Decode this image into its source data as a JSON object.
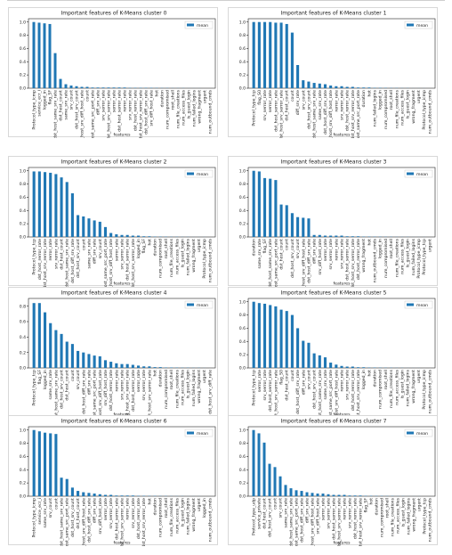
{
  "chart_data": [
    {
      "type": "bar",
      "title": "Important features of K-Means cluster 0",
      "xlabel": "features",
      "ylabel": "",
      "ylim": [
        0,
        1.05
      ],
      "yticks": [
        0.0,
        0.2,
        0.4,
        0.6,
        0.8,
        1.0
      ],
      "legend": "top-right",
      "series": [
        {
          "name": "mean"
        }
      ],
      "categories": [
        "Protocol_type_icmp",
        "service_ecr_i",
        "logged_in",
        "flag_SF",
        "dst_host_same_srv_rate",
        "dst_host_count",
        "same_srv_rate",
        "srv_count",
        "dst_host_srv_count",
        "dst_host_srv_diff_host_rate",
        "count",
        "dst_host_same_src_port_rate",
        "diff_srv_rate",
        "srv_serror_rate",
        "dst_host_srv_serror_rate",
        "serror_rate",
        "dst_host_serror_rate",
        "rerror_rate",
        "srv_rerror_rate",
        "dst_host_rerror_rate",
        "dst_host_srv_rerror_rate",
        "dst_host_diff_srv_rate",
        "srv_diff_host_rate",
        "hot",
        "duration",
        "num_compromised",
        "root_shell",
        "num_file_creations",
        "num_access_files",
        "is_guest_login",
        "num_failed_logins",
        "wrong_fragment",
        "urgent",
        "num_outbound_cmds"
      ],
      "values": [
        1.0,
        0.99,
        0.98,
        0.97,
        0.53,
        0.14,
        0.06,
        0.04,
        0.03,
        0.02,
        0.02,
        0.01,
        0.01,
        0.01,
        0.01,
        0.01,
        0.01,
        0.01,
        0.005,
        0.005,
        0.005,
        0.005,
        0.005,
        0.004,
        0.003,
        0.003,
        0.002,
        0.002,
        0.002,
        0.001,
        0.001,
        0.001,
        0.0,
        0.0
      ]
    },
    {
      "type": "bar",
      "title": "Important features of K-Means cluster 1",
      "xlabel": "features",
      "ylabel": "",
      "ylim": [
        0,
        1.05
      ],
      "yticks": [
        0.0,
        0.2,
        0.4,
        0.6,
        0.8,
        1.0
      ],
      "legend": "top-right",
      "series": [
        {
          "name": "mean"
        }
      ],
      "categories": [
        "Protocol_type_tcp",
        "flag_S0",
        "srv_serror_rate",
        "serror_rate",
        "dst_host_serror_rate",
        "dst_host_srv_serror_rate",
        "dst_host_count",
        "count",
        "diff_srv_rate",
        "srv_count",
        "dst_host_srv_count",
        "dst_host_same_srv_rate",
        "same_srv_rate",
        "dst_host_diff_srv_rate",
        "dst_host_srv_diff_host_rate",
        "rerror_rate",
        "srv_rerror_rate",
        "dst_host_rerror_rate",
        "dst_host_srv_rerror_rate",
        "dst_host_same_src_port_rate",
        "duration",
        "hot",
        "num_failed_logins",
        "logged_in",
        "num_compromised",
        "root_shell",
        "num_file_creations",
        "num_access_files",
        "is_guest_login",
        "wrong_fragment",
        "urgent",
        "Protocol_type_icmp",
        "num_outbound_cmds"
      ],
      "values": [
        1.0,
        1.0,
        1.0,
        1.0,
        0.99,
        0.99,
        0.97,
        0.84,
        0.35,
        0.12,
        0.1,
        0.08,
        0.07,
        0.06,
        0.04,
        0.03,
        0.03,
        0.02,
        0.02,
        0.01,
        0.01,
        0.01,
        0.005,
        0.005,
        0.004,
        0.003,
        0.003,
        0.002,
        0.002,
        0.001,
        0.001,
        0.001,
        0.0
      ]
    },
    {
      "type": "bar",
      "title": "Important features of K-Means cluster 2",
      "xlabel": "features",
      "ylabel": "",
      "ylim": [
        0,
        1.05
      ],
      "yticks": [
        0.0,
        0.2,
        0.4,
        0.6,
        0.8,
        1.0
      ],
      "legend": "top-right",
      "series": [
        {
          "name": "mean"
        }
      ],
      "categories": [
        "Protocol_type_tcp",
        "dst_host_rerror_rate",
        "dst_host_srv_rerror_rate",
        "rerror_rate",
        "srv_rerror_rate",
        "dst_host_count",
        "dst_host_same_srv_rate",
        "dst_host_diff_srv_rate",
        "dst_host_srv_count",
        "count",
        "same_srv_rate",
        "diff_srv_rate",
        "srv_count",
        "dst_host_same_src_port_rate",
        "dst_host_srv_diff_host_rate",
        "serror_rate",
        "srv_serror_rate",
        "dst_host_serror_rate",
        "dst_host_srv_serror_rate",
        "logged_in",
        "flag_SF",
        "hot",
        "duration",
        "num_compromised",
        "root_shell",
        "num_file_creations",
        "num_access_files",
        "is_guest_login",
        "num_failed_logins",
        "wrong_fragment",
        "urgent",
        "Protocol_type_icmp",
        "num_outbound_cmds"
      ],
      "values": [
        0.99,
        0.99,
        0.98,
        0.97,
        0.95,
        0.9,
        0.83,
        0.66,
        0.33,
        0.31,
        0.28,
        0.25,
        0.23,
        0.15,
        0.06,
        0.04,
        0.03,
        0.03,
        0.02,
        0.02,
        0.01,
        0.01,
        0.005,
        0.005,
        0.004,
        0.003,
        0.003,
        0.002,
        0.002,
        0.001,
        0.001,
        0.001,
        0.0
      ]
    },
    {
      "type": "bar",
      "title": "Important features of K-Means cluster 3",
      "xlabel": "features",
      "ylabel": "",
      "ylim": [
        0,
        1.05
      ],
      "yticks": [
        0.0,
        0.2,
        0.4,
        0.6,
        0.8,
        1.0
      ],
      "legend": "top-right",
      "series": [
        {
          "name": "mean"
        }
      ],
      "categories": [
        "duration",
        "same_srv_rate",
        "flag_SF",
        "dst_host_same_srv_rate",
        "dst_host_same_src_port_rate",
        "dst_host_count",
        "count",
        "dst_host_srv_count",
        "srv_count",
        "dst_host_srv_diff_host_rate",
        "dst_host_diff_srv_rate",
        "diff_srv_rate",
        "srv_diff_host_rate",
        "serror_rate",
        "srv_serror_rate",
        "rerror_rate",
        "srv_rerror_rate",
        "dst_host_serror_rate",
        "dst_host_srv_serror_rate",
        "dst_host_rerror_rate",
        "wrong_fragment",
        "hot",
        "num_outbound_cmds",
        "logged_in",
        "num_compromised",
        "root_shell",
        "num_file_creations",
        "num_access_files",
        "is_guest_login",
        "num_failed_logins",
        "Protocol_type_icmp",
        "Protocol_type_tcp",
        "urgent"
      ],
      "values": [
        1.0,
        0.99,
        0.89,
        0.88,
        0.86,
        0.49,
        0.48,
        0.36,
        0.3,
        0.29,
        0.28,
        0.03,
        0.03,
        0.02,
        0.02,
        0.02,
        0.02,
        0.01,
        0.01,
        0.01,
        0.005,
        0.005,
        0.004,
        0.004,
        0.003,
        0.003,
        0.002,
        0.002,
        0.002,
        0.001,
        0.001,
        0.001,
        0.0
      ]
    },
    {
      "type": "bar",
      "title": "Important features of K-Means cluster 4",
      "xlabel": "features",
      "ylabel": "",
      "ylim": [
        0,
        0.9
      ],
      "yticks": [
        0.0,
        0.2,
        0.4,
        0.6,
        0.8
      ],
      "legend": "top-right",
      "series": [
        {
          "name": "mean"
        }
      ],
      "categories": [
        "Protocol_type_tcp",
        "flag_SF",
        "logged_in",
        "same_srv_rate",
        "dst_host_same_srv_rate",
        "dst_host_srv_count",
        "dst_host_count",
        "count",
        "srv_count",
        "dst_host_diff_srv_rate",
        "diff_srv_rate",
        "dst_host_same_src_port_rate",
        "dst_host_srv_diff_host_rate",
        "srv_diff_host_rate",
        "dst_host_rerror_rate",
        "rerror_rate",
        "srv_rerror_rate",
        "dst_host_srv_rerror_rate",
        "dst_host_serror_rate",
        "serror_rate",
        "srv_serror_rate",
        "dst_host_srv_serror_rate",
        "hot",
        "duration",
        "num_compromised",
        "root_shell",
        "num_file_creations",
        "num_access_files",
        "is_guest_login",
        "num_failed_logins",
        "wrong_fragment",
        "urgent",
        "dst_host_srv_diff_rate"
      ],
      "values": [
        0.84,
        0.84,
        0.72,
        0.58,
        0.49,
        0.44,
        0.34,
        0.31,
        0.22,
        0.2,
        0.18,
        0.16,
        0.15,
        0.1,
        0.08,
        0.06,
        0.05,
        0.05,
        0.04,
        0.03,
        0.02,
        0.02,
        0.01,
        0.01,
        0.005,
        0.005,
        0.004,
        0.003,
        0.003,
        0.002,
        0.002,
        0.001,
        0.0
      ]
    },
    {
      "type": "bar",
      "title": "Important features of K-Means cluster 5",
      "xlabel": "features",
      "ylabel": "",
      "ylim": [
        0,
        1.05
      ],
      "yticks": [
        0.0,
        0.2,
        0.4,
        0.6,
        0.8,
        1.0
      ],
      "legend": "top-right",
      "series": [
        {
          "name": "mean"
        }
      ],
      "categories": [
        "Protocol_type_tcp",
        "serror_rate",
        "srv_serror_rate",
        "dst_host_serror_rate",
        "dst_host_srv_serror_rate",
        "flag_S0",
        "dst_host_count",
        "count",
        "dst_host_diff_srv_rate",
        "diff_srv_rate",
        "srv_count",
        "dst_host_srv_count",
        "dst_host_same_srv_rate",
        "same_srv_rate",
        "dst_host_same_src_port_rate",
        "dst_host_srv_diff_host_rate",
        "rerror_rate",
        "srv_rerror_rate",
        "dst_host_rerror_rate",
        "dst_host_srv_rerror_rate",
        "logged_in",
        "hot",
        "duration",
        "num_compromised",
        "root_shell",
        "num_file_creations",
        "num_access_files",
        "is_guest_login",
        "num_failed_logins",
        "wrong_fragment",
        "urgent",
        "Protocol_type_icmp",
        "num_outbound_cmds"
      ],
      "values": [
        1.0,
        0.98,
        0.97,
        0.95,
        0.93,
        0.88,
        0.86,
        0.8,
        0.6,
        0.41,
        0.38,
        0.22,
        0.19,
        0.16,
        0.08,
        0.05,
        0.03,
        0.02,
        0.02,
        0.01,
        0.01,
        0.005,
        0.005,
        0.004,
        0.003,
        0.003,
        0.002,
        0.002,
        0.001,
        0.001,
        0.001,
        0.0,
        0.0
      ]
    },
    {
      "type": "bar",
      "title": "Important features of K-Means cluster 6",
      "xlabel": "features",
      "ylabel": "",
      "ylim": [
        0,
        1.05
      ],
      "yticks": [
        0.0,
        0.2,
        0.4,
        0.6,
        0.8,
        1.0
      ],
      "legend": "top-right",
      "series": [
        {
          "name": "mean"
        }
      ],
      "categories": [
        "Protocol_type_icmp",
        "service_ecr_i",
        "same_srv_rate",
        "srv_count",
        "count",
        "dst_host_same_srv_rate",
        "dst_host_same_src_port_rate",
        "dst_host_srv_count",
        "dst_host_count",
        "dst_host_srv_diff_host_rate",
        "dst_host_diff_srv_rate",
        "diff_srv_rate",
        "srv_diff_host_rate",
        "serror_rate",
        "srv_serror_rate",
        "dst_host_serror_rate",
        "dst_host_srv_serror_rate",
        "rerror_rate",
        "srv_rerror_rate",
        "dst_host_rerror_rate",
        "dst_host_srv_rerror_rate",
        "hot",
        "duration",
        "num_compromised",
        "root_shell",
        "num_file_creations",
        "num_access_files",
        "is_guest_login",
        "num_failed_logins",
        "wrong_fragment",
        "urgent",
        "logged_in",
        "num_outbound_cmds"
      ],
      "values": [
        1.0,
        0.98,
        0.96,
        0.95,
        0.94,
        0.28,
        0.26,
        0.13,
        0.08,
        0.06,
        0.05,
        0.04,
        0.03,
        0.02,
        0.02,
        0.01,
        0.01,
        0.01,
        0.01,
        0.005,
        0.005,
        0.004,
        0.004,
        0.003,
        0.003,
        0.002,
        0.002,
        0.002,
        0.001,
        0.001,
        0.001,
        0.0,
        0.0
      ]
    },
    {
      "type": "bar",
      "title": "Important features of K-Means cluster 7",
      "xlabel": "features",
      "ylabel": "",
      "ylim": [
        0,
        1.05
      ],
      "yticks": [
        0.0,
        0.2,
        0.4,
        0.6,
        0.8,
        1.0
      ],
      "legend": "top-right",
      "series": [
        {
          "name": "mean"
        }
      ],
      "categories": [
        "Protocol_type_udp",
        "service_private",
        "dst_host_count",
        "dst_host_srv_count",
        "count",
        "srv_count",
        "same_srv_rate",
        "dst_host_same_srv_rate",
        "dst_host_same_src_port_rate",
        "dst_host_diff_srv_rate",
        "diff_srv_rate",
        "dst_host_srv_diff_host_rate",
        "srv_diff_host_rate",
        "serror_rate",
        "srv_serror_rate",
        "dst_host_serror_rate",
        "dst_host_srv_serror_rate",
        "rerror_rate",
        "srv_rerror_rate",
        "dst_host_rerror_rate",
        "dst_host_srv_rerror_rate",
        "flag_SF",
        "hot",
        "duration",
        "num_compromised",
        "root_shell",
        "num_file_creations",
        "num_access_files",
        "is_guest_login",
        "num_failed_logins",
        "wrong_fragment",
        "urgent",
        "Protocol_type_tcp",
        "num_outbound_cmds"
      ],
      "values": [
        1.0,
        0.95,
        0.81,
        0.49,
        0.44,
        0.3,
        0.17,
        0.12,
        0.09,
        0.08,
        0.06,
        0.05,
        0.04,
        0.04,
        0.03,
        0.02,
        0.02,
        0.02,
        0.01,
        0.01,
        0.01,
        0.005,
        0.005,
        0.004,
        0.004,
        0.003,
        0.003,
        0.002,
        0.002,
        0.001,
        0.001,
        0.001,
        0.0,
        0.0
      ]
    }
  ]
}
